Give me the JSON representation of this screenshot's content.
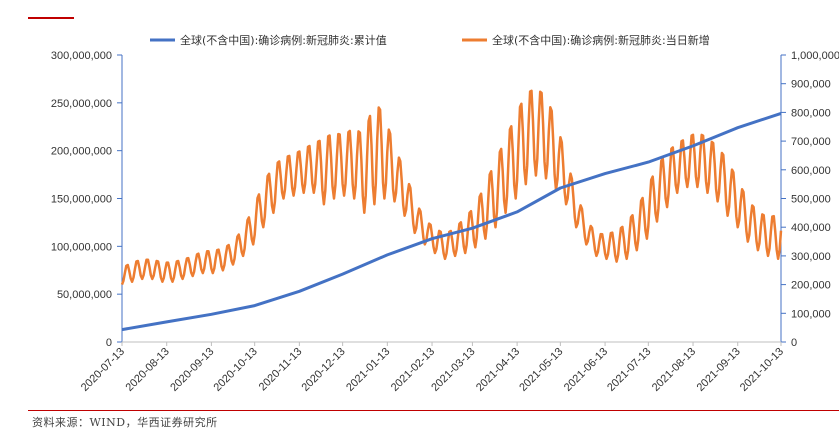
{
  "source_note": "资料来源：WIND，华西证券研究所",
  "colors": {
    "cumulative": "#4472c4",
    "daily": "#ed7d31",
    "axis": "#4472c4",
    "accent": "#c00000"
  },
  "chart_data": {
    "type": "line",
    "legend_position": "top",
    "grid": false,
    "x_tick_labels": [
      "2020-07-13",
      "2020-08-13",
      "2020-09-13",
      "2020-10-13",
      "2020-11-13",
      "2020-12-13",
      "2021-01-13",
      "2021-02-13",
      "2021-03-13",
      "2021-04-13",
      "2021-05-13",
      "2021-06-13",
      "2021-07-13",
      "2021-08-13",
      "2021-09-13",
      "2021-10-13"
    ],
    "y_left": {
      "min": 0,
      "max": 300000000,
      "ticks": [
        "0",
        "50,000,000",
        "100,000,000",
        "150,000,000",
        "200,000,000",
        "250,000,000",
        "300,000,000"
      ]
    },
    "y_right": {
      "min": 0,
      "max": 1000000,
      "ticks": [
        "0",
        "100,000",
        "200,000",
        "300,000",
        "400,000",
        "500,000",
        "600,000",
        "700,000",
        "800,000",
        "900,000",
        "1,000,000"
      ]
    },
    "series": [
      {
        "name": "全球(不含中国):确诊病例:新冠肺炎:累计值",
        "axis": "left",
        "x": [
          "2020-07-13",
          "2020-08-13",
          "2020-09-13",
          "2020-10-13",
          "2020-11-13",
          "2020-12-13",
          "2021-01-13",
          "2021-02-13",
          "2021-03-13",
          "2021-04-13",
          "2021-05-13",
          "2021-06-13",
          "2021-07-13",
          "2021-08-13",
          "2021-09-13",
          "2021-10-13"
        ],
        "values": [
          13000000,
          21000000,
          29000000,
          38000000,
          53000000,
          71000000,
          91000000,
          108000000,
          119000000,
          136000000,
          161000000,
          176000000,
          188000000,
          205000000,
          224000000,
          239000000
        ]
      },
      {
        "name": "全球(不含中国):确诊病例:新冠肺炎:当日新增",
        "axis": "right",
        "x": [
          "2020-07-13",
          "2020-07-20",
          "2020-07-27",
          "2020-08-03",
          "2020-08-10",
          "2020-08-17",
          "2020-08-24",
          "2020-08-31",
          "2020-09-07",
          "2020-09-14",
          "2020-09-21",
          "2020-09-28",
          "2020-10-05",
          "2020-10-12",
          "2020-10-19",
          "2020-10-26",
          "2020-11-02",
          "2020-11-09",
          "2020-11-16",
          "2020-11-23",
          "2020-11-30",
          "2020-12-07",
          "2020-12-14",
          "2020-12-21",
          "2020-12-28",
          "2021-01-04",
          "2021-01-11",
          "2021-01-18",
          "2021-01-25",
          "2021-02-01",
          "2021-02-08",
          "2021-02-15",
          "2021-02-22",
          "2021-03-01",
          "2021-03-08",
          "2021-03-15",
          "2021-03-22",
          "2021-03-29",
          "2021-04-05",
          "2021-04-12",
          "2021-04-19",
          "2021-04-26",
          "2021-05-03",
          "2021-05-10",
          "2021-05-17",
          "2021-05-24",
          "2021-05-31",
          "2021-06-07",
          "2021-06-14",
          "2021-06-21",
          "2021-06-28",
          "2021-07-05",
          "2021-07-12",
          "2021-07-19",
          "2021-07-26",
          "2021-08-02",
          "2021-08-09",
          "2021-08-16",
          "2021-08-23",
          "2021-08-30",
          "2021-09-06",
          "2021-09-13",
          "2021-09-20",
          "2021-09-27",
          "2021-10-04",
          "2021-10-11"
        ],
        "min_values": [
          200000,
          210000,
          220000,
          220000,
          210000,
          210000,
          220000,
          230000,
          240000,
          240000,
          250000,
          270000,
          300000,
          340000,
          400000,
          450000,
          500000,
          510000,
          520000,
          520000,
          480000,
          500000,
          510000,
          500000,
          450000,
          480000,
          500000,
          490000,
          440000,
          380000,
          340000,
          310000,
          290000,
          300000,
          310000,
          330000,
          360000,
          400000,
          450000,
          500000,
          550000,
          580000,
          570000,
          530000,
          480000,
          400000,
          340000,
          300000,
          290000,
          280000,
          290000,
          320000,
          360000,
          420000,
          470000,
          520000,
          540000,
          540000,
          520000,
          490000,
          440000,
          400000,
          350000,
          320000,
          300000,
          290000
        ],
        "max_values": [
          260000,
          280000,
          290000,
          290000,
          280000,
          280000,
          290000,
          300000,
          320000,
          320000,
          330000,
          350000,
          400000,
          470000,
          560000,
          620000,
          650000,
          660000,
          680000,
          700000,
          720000,
          740000,
          730000,
          760000,
          730000,
          860000,
          800000,
          690000,
          600000,
          500000,
          430000,
          400000,
          380000,
          400000,
          440000,
          480000,
          560000,
          640000,
          720000,
          800000,
          880000,
          900000,
          870000,
          780000,
          650000,
          520000,
          430000,
          380000,
          380000,
          390000,
          420000,
          470000,
          540000,
          620000,
          670000,
          700000,
          720000,
          740000,
          720000,
          690000,
          640000,
          570000,
          500000,
          460000,
          440000,
          450000
        ]
      }
    ]
  }
}
